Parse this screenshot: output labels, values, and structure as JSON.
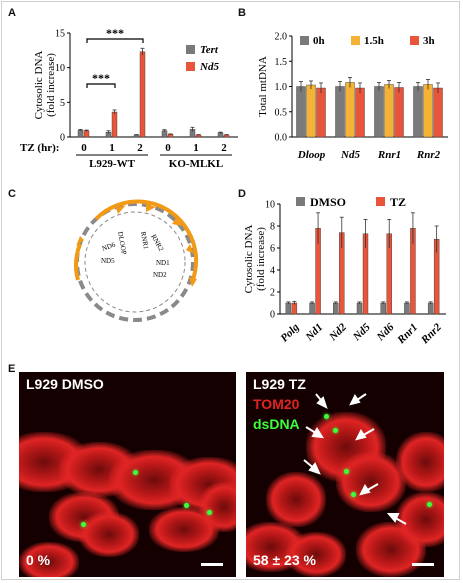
{
  "panels": {
    "a": "A",
    "b": "B",
    "c": "C",
    "d": "D",
    "e": "E"
  },
  "chart_data": [
    {
      "panel": "A",
      "type": "bar",
      "ylabel": "Cytosolic DNA\n(fold increase)",
      "ylim": [
        0,
        15
      ],
      "yticks": [
        "0",
        "5",
        "10",
        "15"
      ],
      "tz_label": "TZ (hr):",
      "categories": [
        "0",
        "1",
        "2",
        "0",
        "1",
        "2"
      ],
      "groups": [
        "L929-WT",
        "KO-MLKL"
      ],
      "series": [
        {
          "name": "Tert",
          "color": "#7a7a7a",
          "values": [
            1.0,
            0.7,
            0.3,
            0.9,
            1.1,
            0.6
          ],
          "errors": [
            0.1,
            0.2,
            0.05,
            0.15,
            0.3,
            0.1
          ]
        },
        {
          "name": "Nd5",
          "color": "#e8553a",
          "values": [
            0.9,
            3.6,
            12.3,
            0.4,
            0.3,
            0.3
          ],
          "errors": [
            0.1,
            0.3,
            0.5,
            0.05,
            0.05,
            0.05
          ]
        }
      ],
      "significance": [
        "***",
        "***"
      ],
      "legend": "top-right"
    },
    {
      "panel": "B",
      "type": "bar",
      "ylabel": "Total mtDNA",
      "ylim": [
        0,
        2.0
      ],
      "yticks": [
        "0.0",
        "0.5",
        "1.0",
        "1.5",
        "2.0"
      ],
      "categories": [
        "Dloop",
        "Nd5",
        "Rnr1",
        "Rnr2"
      ],
      "series": [
        {
          "name": "0h",
          "color": "#7a7a7a",
          "values": [
            1.0,
            1.0,
            1.0,
            1.0
          ],
          "errors": [
            0.1,
            0.1,
            0.08,
            0.08
          ]
        },
        {
          "name": "1.5h",
          "color": "#f5b335",
          "values": [
            1.03,
            1.08,
            1.04,
            1.04
          ],
          "errors": [
            0.08,
            0.1,
            0.08,
            0.1
          ]
        },
        {
          "name": "3h",
          "color": "#e8553a",
          "values": [
            0.97,
            0.97,
            0.98,
            0.97
          ],
          "errors": [
            0.1,
            0.1,
            0.1,
            0.1
          ]
        }
      ],
      "legend": "top"
    },
    {
      "panel": "D",
      "type": "bar",
      "ylabel": "Cytosolic DNA\n(fold increase)",
      "ylim": [
        0,
        10
      ],
      "yticks": [
        "0",
        "2",
        "4",
        "6",
        "8",
        "10"
      ],
      "categories": [
        "Polg",
        "Nd1",
        "Nd2",
        "Nd5",
        "Nd6",
        "Rnr1",
        "Rnr2"
      ],
      "series": [
        {
          "name": "DMSO",
          "color": "#7a7a7a",
          "values": [
            1.0,
            1.0,
            1.0,
            1.0,
            1.0,
            1.0,
            1.0
          ],
          "errors": [
            0.1,
            0.1,
            0.1,
            0.1,
            0.1,
            0.1,
            0.1
          ]
        },
        {
          "name": "TZ",
          "color": "#e8553a",
          "values": [
            1.0,
            7.8,
            7.4,
            7.3,
            7.3,
            7.8,
            6.8
          ],
          "errors": [
            0.15,
            1.4,
            1.4,
            1.3,
            1.3,
            1.4,
            1.2
          ]
        }
      ],
      "legend": "top"
    }
  ],
  "diagram_c": {
    "genes": [
      "DLOOP",
      "RNR1",
      "RNR2",
      "ND1",
      "ND2",
      "ND6",
      "ND5"
    ]
  },
  "panel_e": {
    "left": {
      "title": "L929 DMSO",
      "percent": "0 %"
    },
    "right": {
      "title": "L929 TZ",
      "tom20": "TOM20",
      "dsdna": "dsDNA",
      "percent": "58 ± 23 %"
    },
    "colors": {
      "tom20": "#e02424",
      "dsdna": "#3cff3c"
    }
  }
}
